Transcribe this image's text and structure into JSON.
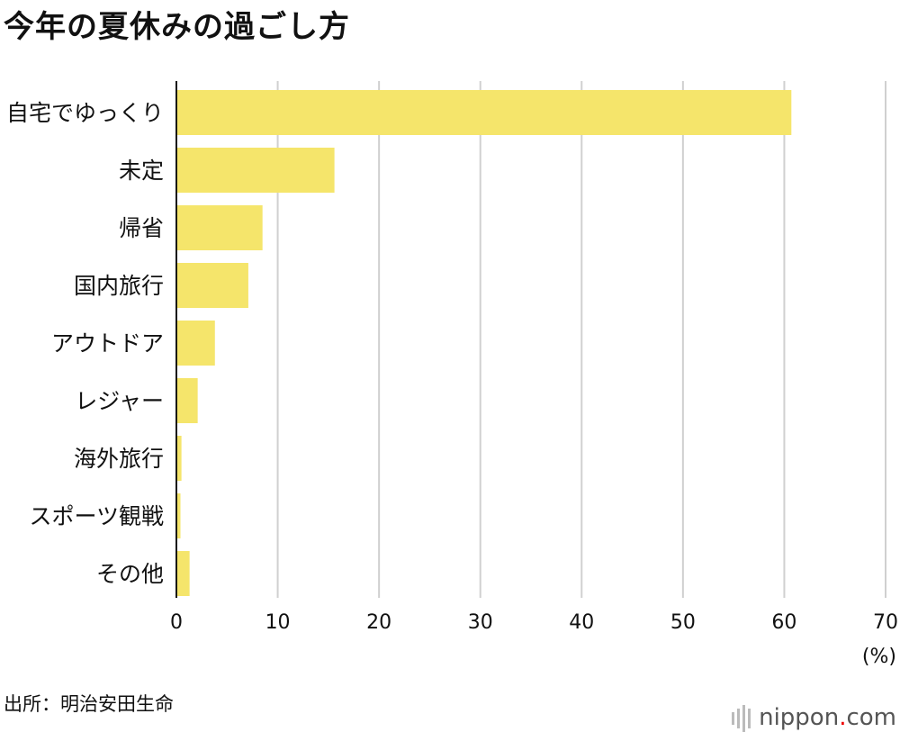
{
  "chart_data": {
    "type": "bar",
    "orientation": "horizontal",
    "title": "今年の夏休みの過ごし方",
    "categories": [
      "自宅でゆっくり",
      "未定",
      "帰省",
      "国内旅行",
      "アウトドア",
      "レジャー",
      "海外旅行",
      "スポーツ観戦",
      "その他"
    ],
    "values": [
      60.7,
      15.6,
      8.5,
      7.1,
      3.8,
      2.1,
      0.5,
      0.4,
      1.3
    ],
    "xlim": [
      0,
      70
    ],
    "xticks": [
      0,
      10,
      20,
      30,
      40,
      50,
      60,
      70
    ],
    "xtick_labels": [
      "0",
      "10",
      "20",
      "30",
      "40",
      "50",
      "60",
      "70"
    ],
    "unit_label": "(%)",
    "grid": true,
    "bar_color": "#F5E56B",
    "grid_color": "#d0d0d0"
  },
  "source": "出所：明治安田生命",
  "logo": {
    "name": "nippon",
    "dot": ".",
    "tld": "com"
  }
}
